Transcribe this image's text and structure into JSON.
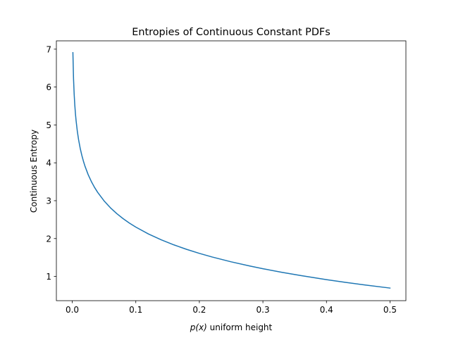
{
  "chart_data": {
    "type": "line",
    "title": "Entropies of Continuous Constant PDFs",
    "xlabel_italic": "p(x)",
    "xlabel_rest": " uniform height",
    "ylabel": "Continuous Entropy",
    "xlim": [
      -0.025,
      0.525
    ],
    "ylim": [
      0.36,
      7.22
    ],
    "xticks": [
      0.0,
      0.1,
      0.2,
      0.3,
      0.4,
      0.5
    ],
    "xtick_labels": [
      "0.0",
      "0.1",
      "0.2",
      "0.3",
      "0.4",
      "0.5"
    ],
    "yticks": [
      1,
      2,
      3,
      4,
      5,
      6,
      7
    ],
    "ytick_labels": [
      "1",
      "2",
      "3",
      "4",
      "5",
      "6",
      "7"
    ],
    "grid": false,
    "series": [
      {
        "color": "#1f77b4",
        "x": [
          0.001,
          0.002,
          0.003,
          0.004,
          0.005,
          0.006,
          0.008,
          0.01,
          0.0125,
          0.015,
          0.0175,
          0.02,
          0.025,
          0.03,
          0.035,
          0.04,
          0.05,
          0.06,
          0.07,
          0.08,
          0.09,
          0.1,
          0.12,
          0.14,
          0.16,
          0.18,
          0.2,
          0.22,
          0.25,
          0.28,
          0.3,
          0.33,
          0.36,
          0.4,
          0.43,
          0.46,
          0.5
        ],
        "y": [
          6.908,
          6.215,
          5.809,
          5.521,
          5.298,
          5.116,
          4.828,
          4.605,
          4.382,
          4.2,
          4.046,
          3.912,
          3.689,
          3.507,
          3.352,
          3.219,
          2.996,
          2.813,
          2.659,
          2.526,
          2.408,
          2.303,
          2.12,
          1.966,
          1.833,
          1.715,
          1.609,
          1.514,
          1.386,
          1.273,
          1.204,
          1.109,
          1.022,
          0.916,
          0.844,
          0.777,
          0.693
        ]
      }
    ]
  }
}
